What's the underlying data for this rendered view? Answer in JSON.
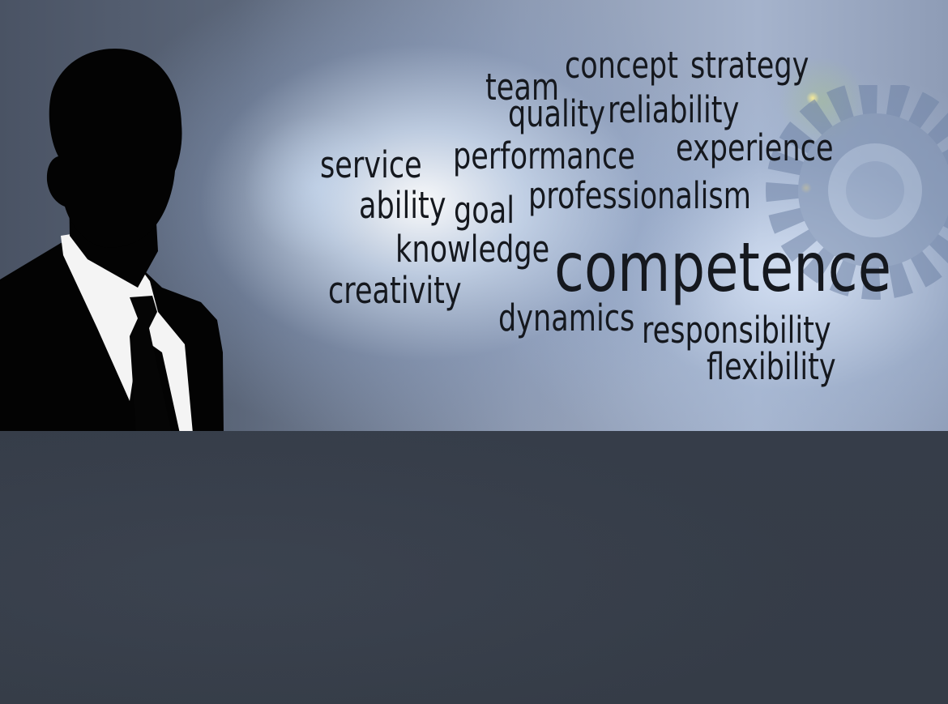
{
  "banner": {
    "figure": {
      "name": "businessman-silhouette"
    },
    "word_cloud": {
      "words": [
        {
          "id": "concept",
          "text": "concept"
        },
        {
          "id": "strategy",
          "text": "strategy"
        },
        {
          "id": "team",
          "text": "team"
        },
        {
          "id": "quality",
          "text": "quality"
        },
        {
          "id": "reliability",
          "text": "reliability"
        },
        {
          "id": "service",
          "text": "service"
        },
        {
          "id": "performance",
          "text": "performance"
        },
        {
          "id": "experience",
          "text": "experience"
        },
        {
          "id": "ability",
          "text": "ability"
        },
        {
          "id": "goal",
          "text": "goal"
        },
        {
          "id": "professionalism",
          "text": "professionalism"
        },
        {
          "id": "knowledge",
          "text": "knowledge"
        },
        {
          "id": "competence",
          "text": "competence"
        },
        {
          "id": "creativity",
          "text": "creativity"
        },
        {
          "id": "dynamics",
          "text": "dynamics"
        },
        {
          "id": "responsibility",
          "text": "responsibility"
        },
        {
          "id": "flexibility",
          "text": "flexibility"
        }
      ]
    },
    "gear": {
      "name": "gear-icon"
    }
  },
  "colors": {
    "text": "#15181e",
    "lower_panel": "#353c47",
    "glow": "#ffffff"
  }
}
